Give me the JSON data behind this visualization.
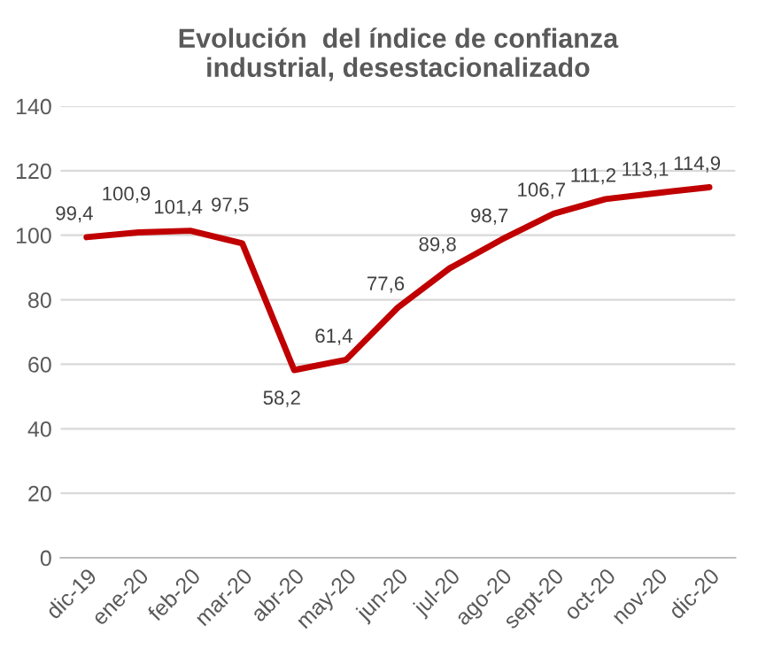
{
  "chart_data": {
    "type": "line",
    "title": "Evolución  del índice de confianza\nindustrial, desestacionalizado",
    "categories": [
      "dic-19",
      "ene-20",
      "feb-20",
      "mar-20",
      "abr-20",
      "may-20",
      "jun-20",
      "jul-20",
      "ago-20",
      "sept-20",
      "oct-20",
      "nov-20",
      "dic-20"
    ],
    "series": [
      {
        "color": "#c00000",
        "values": [
          99.4,
          100.9,
          101.4,
          97.5,
          58.2,
          61.4,
          77.6,
          89.8,
          98.7,
          106.7,
          111.2,
          113.1,
          114.9
        ],
        "value_labels": [
          "99,4",
          "100,9",
          "101,4",
          "97,5",
          "58,2",
          "61,4",
          "77,6",
          "89,8",
          "98,7",
          "106,7",
          "111,2",
          "113,1",
          "114,9"
        ]
      }
    ],
    "ylim": [
      0,
      140
    ],
    "yticks": [
      0,
      20,
      40,
      60,
      80,
      100,
      120,
      140
    ],
    "grid": "y",
    "legend": false,
    "marker": "none",
    "line_style": "solid"
  }
}
